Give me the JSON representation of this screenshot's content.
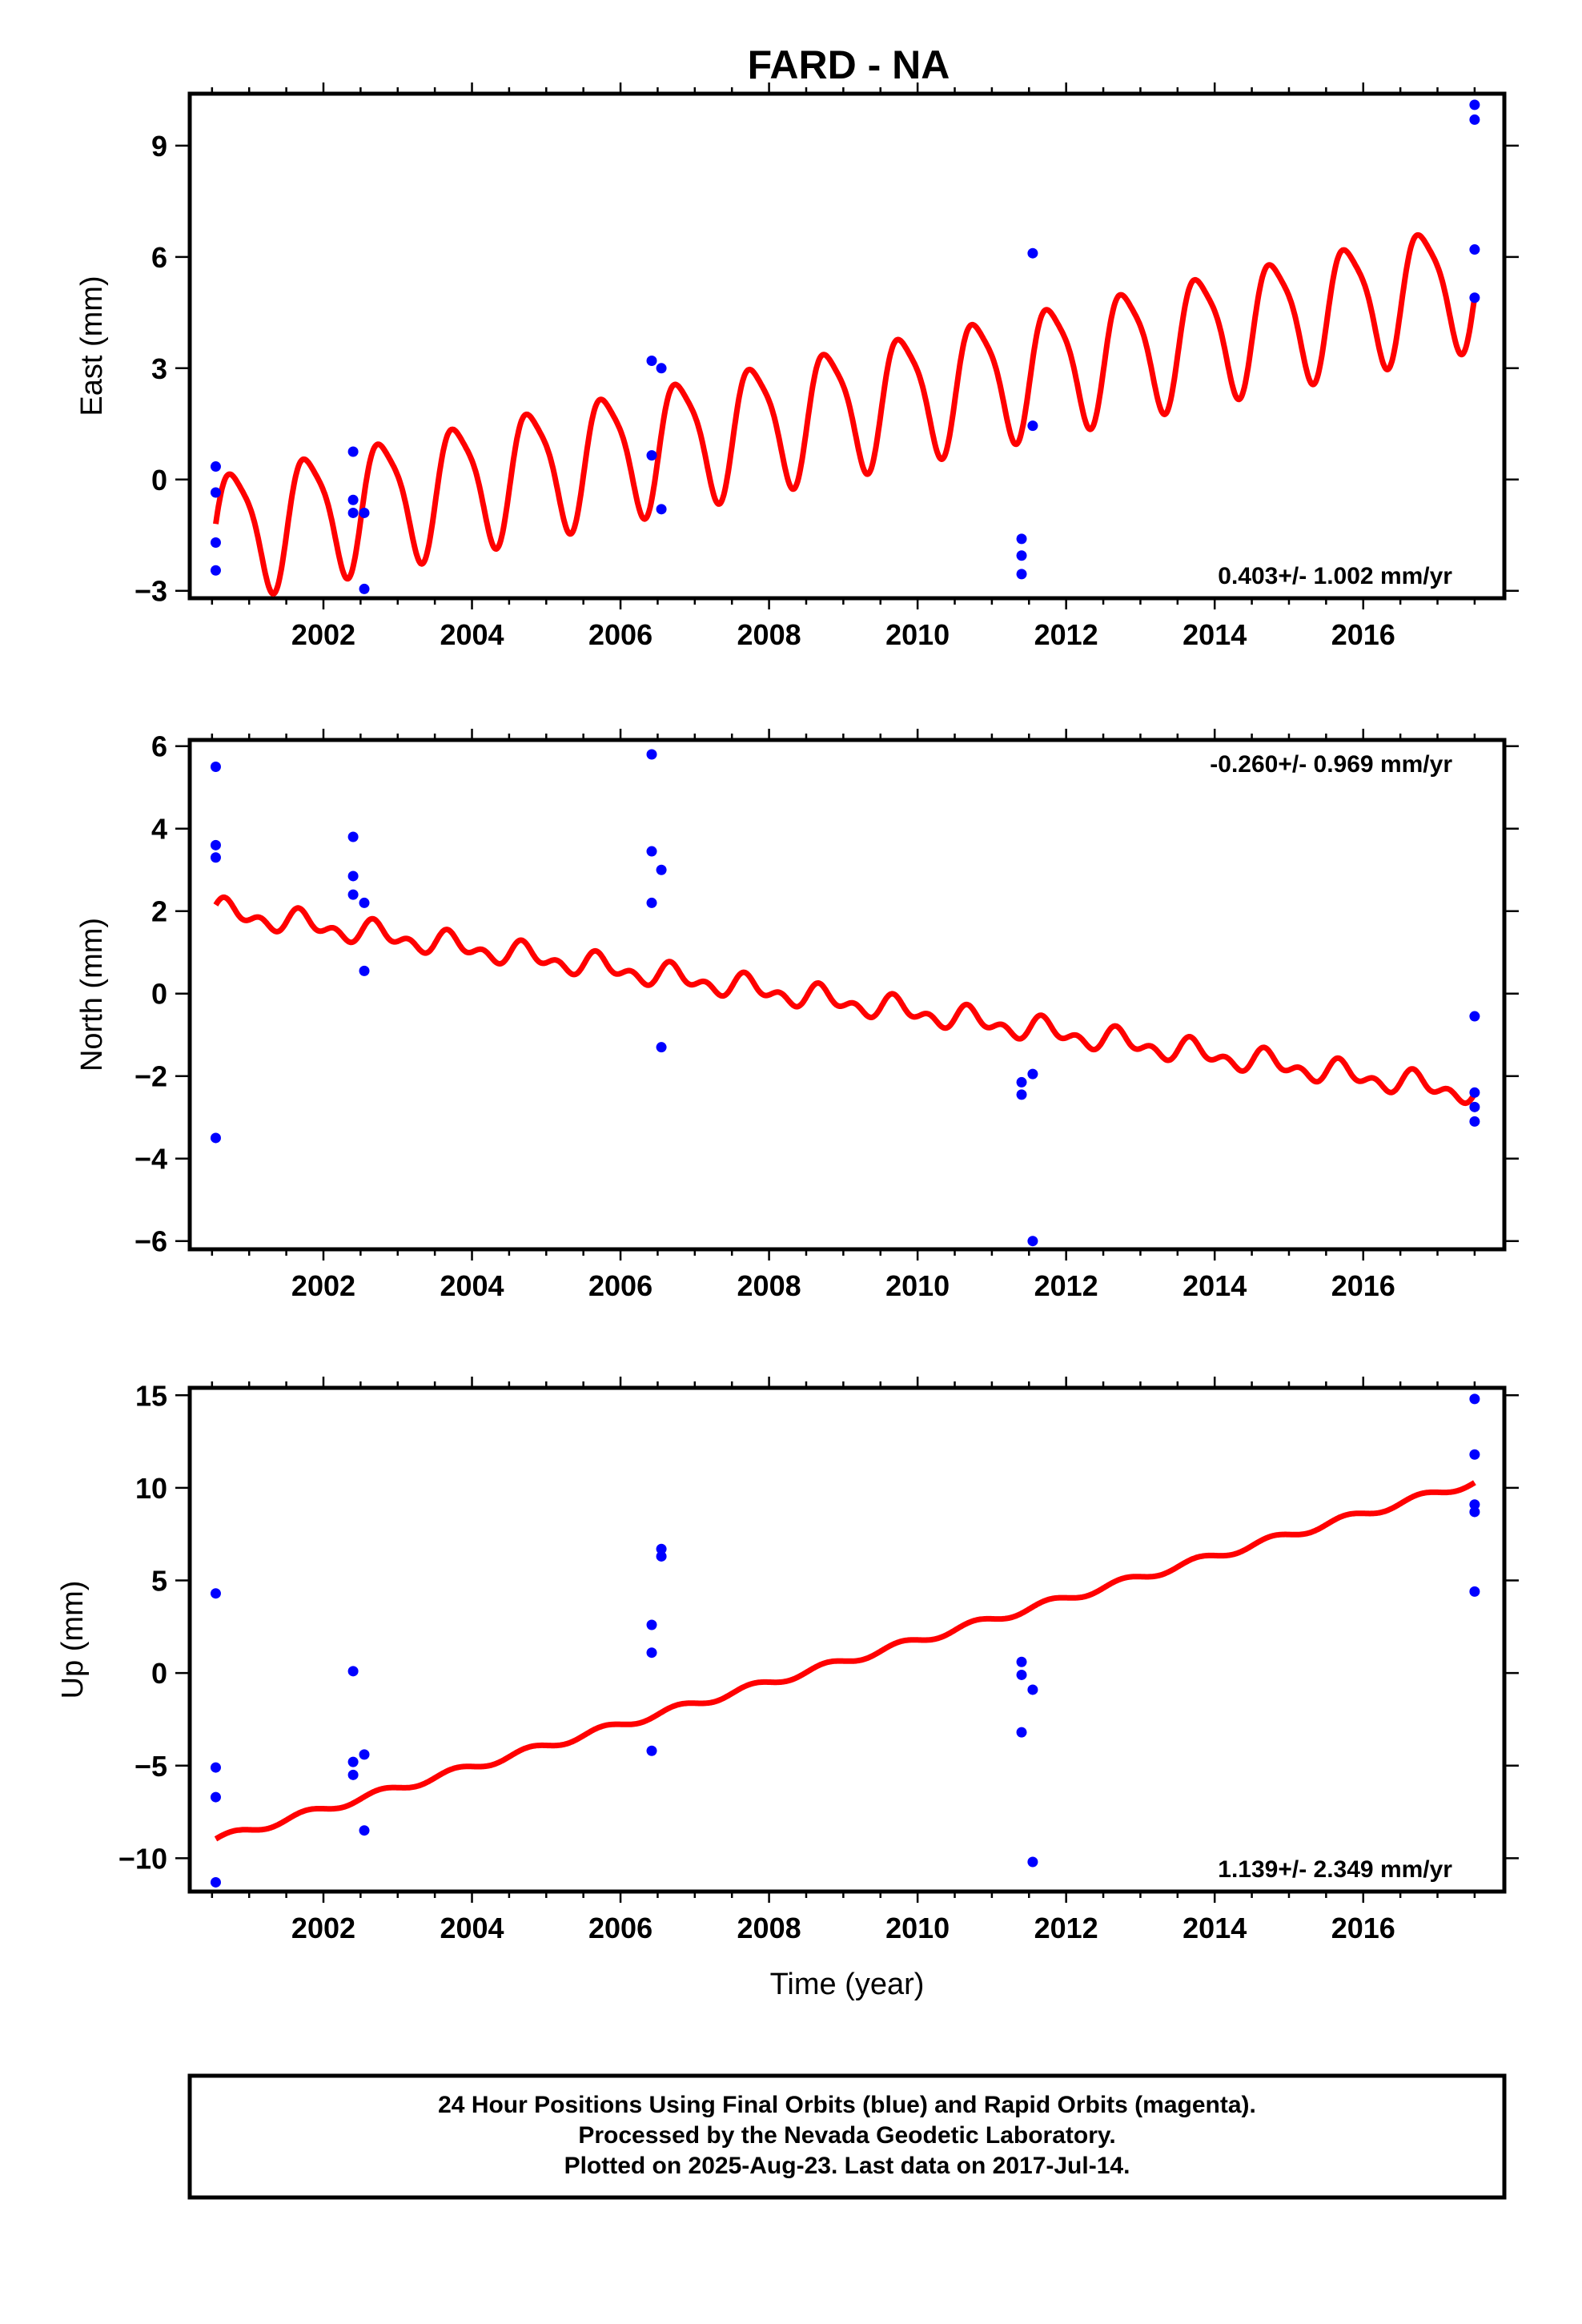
{
  "title": "FARD - NA",
  "xlabel": "Time (year)",
  "colors": {
    "data": "#0000ff",
    "model": "#ff0000",
    "frame": "#000000"
  },
  "footer": {
    "line1": "24 Hour Positions Using Final Orbits (blue) and Rapid Orbits (magenta).",
    "line2": "Processed by the Nevada Geodetic Laboratory.",
    "line3": "Plotted on 2025-Aug-23. Last data on 2017-Jul-14."
  },
  "chart_data": [
    {
      "type": "scatter",
      "ylabel": "East (mm)",
      "rate_label": "0.403+/- 1.002 mm/yr",
      "xlim": [
        2000.2,
        2017.9
      ],
      "ylim": [
        -3.2,
        10.4
      ],
      "xticks": [
        2002,
        2004,
        2006,
        2008,
        2010,
        2012,
        2014,
        2016
      ],
      "yticks": [
        -3,
        0,
        3,
        6,
        9
      ],
      "points": [
        [
          2000.55,
          0.35
        ],
        [
          2000.55,
          -0.35
        ],
        [
          2000.55,
          -1.7
        ],
        [
          2000.55,
          -2.45
        ],
        [
          2002.4,
          0.75
        ],
        [
          2002.4,
          -0.55
        ],
        [
          2002.4,
          -0.9
        ],
        [
          2002.55,
          -0.9
        ],
        [
          2002.55,
          -2.95
        ],
        [
          2006.42,
          3.2
        ],
        [
          2006.42,
          0.65
        ],
        [
          2006.55,
          3.0
        ],
        [
          2006.55,
          -0.8
        ],
        [
          2011.4,
          -1.6
        ],
        [
          2011.4,
          -2.05
        ],
        [
          2011.4,
          -2.55
        ],
        [
          2011.55,
          6.1
        ],
        [
          2011.55,
          1.45
        ],
        [
          2017.5,
          10.1
        ],
        [
          2017.5,
          9.7
        ],
        [
          2017.5,
          6.2
        ],
        [
          2017.5,
          4.9
        ]
      ],
      "model": {
        "start": 2000.55,
        "end": 2017.5,
        "intercept": -1.45,
        "slope": 0.403,
        "annual_amp": 1.65,
        "annual_phase": 0.0,
        "semi_amp": 0.35,
        "semi_phase": 0.8
      }
    },
    {
      "type": "scatter",
      "ylabel": "North (mm)",
      "rate_label": "-0.260+/- 0.969 mm/yr",
      "xlim": [
        2000.2,
        2017.9
      ],
      "ylim": [
        -6.2,
        6.15
      ],
      "xticks": [
        2002,
        2004,
        2006,
        2008,
        2010,
        2012,
        2014,
        2016
      ],
      "yticks": [
        -6,
        -4,
        -2,
        0,
        2,
        4,
        6
      ],
      "points": [
        [
          2000.55,
          5.5
        ],
        [
          2000.55,
          3.6
        ],
        [
          2000.55,
          3.3
        ],
        [
          2000.55,
          -3.5
        ],
        [
          2002.4,
          3.8
        ],
        [
          2002.4,
          2.85
        ],
        [
          2002.4,
          2.4
        ],
        [
          2002.55,
          2.2
        ],
        [
          2002.55,
          0.55
        ],
        [
          2006.42,
          5.8
        ],
        [
          2006.42,
          3.45
        ],
        [
          2006.42,
          2.2
        ],
        [
          2006.55,
          3.0
        ],
        [
          2006.55,
          -1.3
        ],
        [
          2011.4,
          -2.15
        ],
        [
          2011.4,
          -2.45
        ],
        [
          2011.55,
          -1.95
        ],
        [
          2011.55,
          -6.0
        ],
        [
          2017.5,
          -0.55
        ],
        [
          2017.5,
          -2.4
        ],
        [
          2017.5,
          -2.75
        ],
        [
          2017.5,
          -3.1
        ]
      ],
      "model": {
        "start": 2000.55,
        "end": 2017.5,
        "intercept": 2.0,
        "slope": -0.26,
        "annual_amp": 0.2,
        "annual_phase": 0.5,
        "semi_amp": 0.18,
        "semi_phase": 0.3
      }
    },
    {
      "type": "scatter",
      "ylabel": "Up (mm)",
      "rate_label": "1.139+/- 2.349 mm/yr",
      "xlim": [
        2000.2,
        2017.9
      ],
      "ylim": [
        -11.8,
        15.4
      ],
      "xticks": [
        2002,
        2004,
        2006,
        2008,
        2010,
        2012,
        2014,
        2016
      ],
      "yticks": [
        -10,
        -5,
        0,
        5,
        10,
        15
      ],
      "points": [
        [
          2000.55,
          4.3
        ],
        [
          2000.55,
          -5.1
        ],
        [
          2000.55,
          -6.7
        ],
        [
          2000.55,
          -11.3
        ],
        [
          2002.4,
          0.1
        ],
        [
          2002.4,
          -4.8
        ],
        [
          2002.4,
          -5.5
        ],
        [
          2002.55,
          -4.4
        ],
        [
          2002.55,
          -8.5
        ],
        [
          2006.42,
          2.6
        ],
        [
          2006.42,
          1.1
        ],
        [
          2006.42,
          -4.2
        ],
        [
          2006.55,
          6.7
        ],
        [
          2006.55,
          6.3
        ],
        [
          2011.4,
          0.6
        ],
        [
          2011.4,
          -0.1
        ],
        [
          2011.4,
          -3.2
        ],
        [
          2011.55,
          -0.9
        ],
        [
          2011.55,
          -10.2
        ],
        [
          2017.5,
          14.8
        ],
        [
          2017.5,
          11.8
        ],
        [
          2017.5,
          9.1
        ],
        [
          2017.5,
          8.7
        ],
        [
          2017.5,
          4.4
        ]
      ],
      "model": {
        "start": 2000.55,
        "end": 2017.5,
        "intercept": -9.0,
        "slope": 1.139,
        "annual_amp": 0.2,
        "annual_phase": 0.2,
        "semi_amp": 0.0,
        "semi_phase": 0.0
      }
    }
  ]
}
